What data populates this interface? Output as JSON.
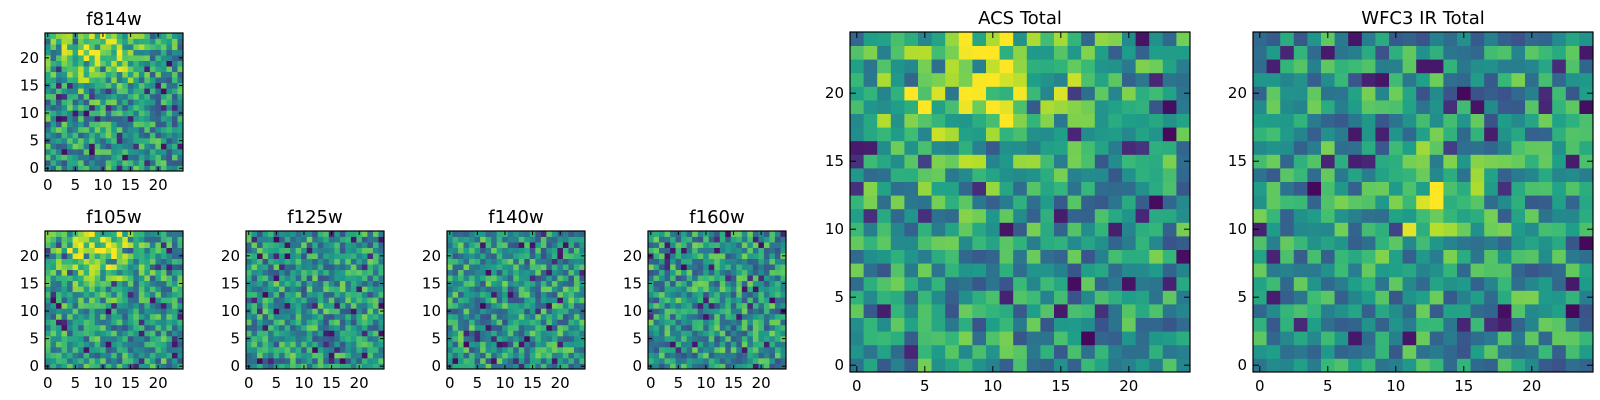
{
  "chart_data": [
    {
      "type": "heatmap",
      "title": "f814w",
      "grid_size": 25,
      "xlim": [
        0,
        24
      ],
      "ylim": [
        0,
        24
      ],
      "xticks": [
        0,
        5,
        10,
        15,
        20
      ],
      "yticks": [
        0,
        5,
        10,
        15,
        20
      ],
      "colormap": "viridis",
      "seed": 814,
      "pattern": "upper_bright"
    },
    {
      "type": "heatmap",
      "title": "f105w",
      "grid_size": 25,
      "xlim": [
        0,
        24
      ],
      "ylim": [
        0,
        24
      ],
      "xticks": [
        0,
        5,
        10,
        15,
        20
      ],
      "yticks": [
        0,
        5,
        10,
        15,
        20
      ],
      "colormap": "viridis",
      "seed": 105,
      "pattern": "upper_bright"
    },
    {
      "type": "heatmap",
      "title": "f125w",
      "grid_size": 25,
      "xlim": [
        0,
        24
      ],
      "ylim": [
        0,
        24
      ],
      "xticks": [
        0,
        5,
        10,
        15,
        20
      ],
      "yticks": [
        0,
        5,
        10,
        15,
        20
      ],
      "colormap": "viridis",
      "seed": 125,
      "pattern": "noise"
    },
    {
      "type": "heatmap",
      "title": "f140w",
      "grid_size": 25,
      "xlim": [
        0,
        24
      ],
      "ylim": [
        0,
        24
      ],
      "xticks": [
        0,
        5,
        10,
        15,
        20
      ],
      "yticks": [
        0,
        5,
        10,
        15,
        20
      ],
      "colormap": "viridis",
      "seed": 140,
      "pattern": "noise"
    },
    {
      "type": "heatmap",
      "title": "f160w",
      "grid_size": 25,
      "xlim": [
        0,
        24
      ],
      "ylim": [
        0,
        24
      ],
      "xticks": [
        0,
        5,
        10,
        15,
        20
      ],
      "yticks": [
        0,
        5,
        10,
        15,
        20
      ],
      "colormap": "viridis",
      "seed": 160,
      "pattern": "noise"
    },
    {
      "type": "heatmap",
      "title": "ACS Total",
      "grid_size": 25,
      "xlim": [
        0,
        24
      ],
      "ylim": [
        0,
        24
      ],
      "xticks": [
        0,
        5,
        10,
        15,
        20
      ],
      "yticks": [
        0,
        5,
        10,
        15,
        20
      ],
      "colormap": "viridis",
      "seed": 7,
      "pattern": "upper_bright"
    },
    {
      "type": "heatmap",
      "title": "WFC3 IR Total",
      "grid_size": 25,
      "xlim": [
        0,
        24
      ],
      "ylim": [
        0,
        24
      ],
      "xticks": [
        0,
        5,
        10,
        15,
        20
      ],
      "yticks": [
        0,
        5,
        10,
        15,
        20
      ],
      "colormap": "viridis",
      "seed": 33,
      "pattern": "center_bright"
    }
  ]
}
